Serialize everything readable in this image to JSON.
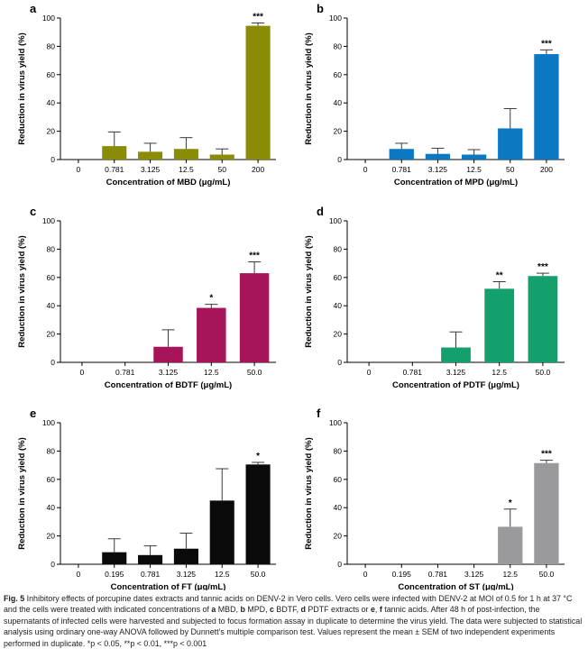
{
  "chart_data": [
    {
      "panel": "a",
      "type": "bar",
      "color": "#8a8c05",
      "categories": [
        "0",
        "0.781",
        "3.125",
        "12.5",
        "50",
        "200"
      ],
      "values": [
        0,
        9.5,
        5.5,
        7.5,
        3.5,
        94.5
      ],
      "errors": [
        0,
        10,
        6,
        8,
        4,
        2
      ],
      "significance": [
        "",
        "",
        "",
        "",
        "",
        "***"
      ],
      "xlabel": "Concentration of MBD (μg/mL)",
      "ylabel": "Reduction in virus yield (%)",
      "ylim": [
        0,
        100
      ],
      "yticks": [
        "0",
        "20",
        "40",
        "60",
        "80",
        "100"
      ]
    },
    {
      "panel": "b",
      "type": "bar",
      "color": "#0a79c1",
      "categories": [
        "0",
        "0.781",
        "3.125",
        "12.5",
        "50",
        "200"
      ],
      "values": [
        0,
        7.5,
        4,
        3.5,
        22,
        74.5
      ],
      "errors": [
        0,
        4,
        4,
        3.5,
        14,
        3
      ],
      "significance": [
        "",
        "",
        "",
        "",
        "",
        "***"
      ],
      "xlabel": "Concentration of MPD (μg/mL)",
      "ylabel": "Reduction in virus yield (%)",
      "ylim": [
        0,
        100
      ],
      "yticks": [
        "0",
        "20",
        "40",
        "60",
        "80",
        "100"
      ]
    },
    {
      "panel": "c",
      "type": "bar",
      "color": "#a8145a",
      "categories": [
        "0",
        "0.781",
        "3.125",
        "12.5",
        "50.0"
      ],
      "values": [
        0,
        0,
        11,
        38.5,
        63
      ],
      "errors": [
        0,
        0,
        12,
        2.5,
        8
      ],
      "significance": [
        "",
        "",
        "",
        "*",
        "***"
      ],
      "xlabel": "Concentration of BDTF (μg/mL)",
      "ylabel": "Reduction in virus yield (%)",
      "ylim": [
        0,
        100
      ],
      "yticks": [
        "0",
        "20",
        "40",
        "60",
        "80",
        "100"
      ]
    },
    {
      "panel": "d",
      "type": "bar",
      "color": "#14a06c",
      "categories": [
        "0",
        "0.781",
        "3.125",
        "12.5",
        "50.0"
      ],
      "values": [
        0,
        0,
        10.5,
        52,
        61
      ],
      "errors": [
        0,
        0,
        11,
        5,
        2
      ],
      "significance": [
        "",
        "",
        "",
        "**",
        "***"
      ],
      "xlabel": "Concentration of PDTF (μg/mL)",
      "ylabel": "Reduction in virus yield (%)",
      "ylim": [
        0,
        100
      ],
      "yticks": [
        "0",
        "20",
        "40",
        "60",
        "80",
        "100"
      ]
    },
    {
      "panel": "e",
      "type": "bar",
      "color": "#0a0a0a",
      "categories": [
        "0",
        "0.195",
        "0.781",
        "3.125",
        "12.5",
        "50.0"
      ],
      "values": [
        0,
        8.5,
        6.5,
        11,
        45,
        70.5
      ],
      "errors": [
        0,
        9.5,
        6.5,
        11,
        22.5,
        1.5
      ],
      "significance": [
        "",
        "",
        "",
        "",
        "",
        "*"
      ],
      "xlabel": "Concentration of FT (μg/mL)",
      "ylabel": "Reduction in virus yield (%)",
      "ylim": [
        0,
        100
      ],
      "yticks": [
        "0",
        "20",
        "40",
        "60",
        "80",
        "100"
      ]
    },
    {
      "panel": "f",
      "type": "bar",
      "color": "#9a999c",
      "categories": [
        "0",
        "0.195",
        "0.781",
        "3.125",
        "12.5",
        "50.0"
      ],
      "values": [
        0,
        0,
        0,
        0,
        26.5,
        71.5
      ],
      "errors": [
        0,
        0,
        0,
        0,
        12.5,
        2
      ],
      "significance": [
        "",
        "",
        "",
        "",
        "*",
        "***"
      ],
      "xlabel": "Concentration of ST (μg/mL)",
      "ylabel": "Reduction in virus yield (%)",
      "ylim": [
        0,
        100
      ],
      "yticks": [
        "0",
        "20",
        "40",
        "60",
        "80",
        "100"
      ]
    }
  ],
  "caption": {
    "label": "Fig. 5",
    "title": " Inhibitory effects of porcupine dates extracts and tannic acids on DENV-2 in Vero cells.",
    "t1": " Vero cells were infected with DENV-2 at MOI of 0.5 for 1 h at 37 °C and the cells were treated with indicated concentrations of ",
    "a": "a",
    "t_mbd": " MBD, ",
    "b": "b",
    "t_mpd": " MPD, ",
    "c": "c",
    "t_bdtf": " BDTF, ",
    "d": "d",
    "t_pdtf": " PDTF extracts or ",
    "e": "e",
    "comma": ", ",
    "f": "f",
    "t2": " tannic acids. After 48 h of post-infection, the supernatants of infected cells were harvested and subjected to focus formation assay in duplicate to determine the virus yield. The data were subjected to statistical analysis using ordinary one-way ANOVA followed by Dunnett’s multiple comparison test. Values represent the mean ± SEM of two independent experiments performed in duplicate. *p < 0.05, **p < 0.01, ***p < 0.001"
  }
}
